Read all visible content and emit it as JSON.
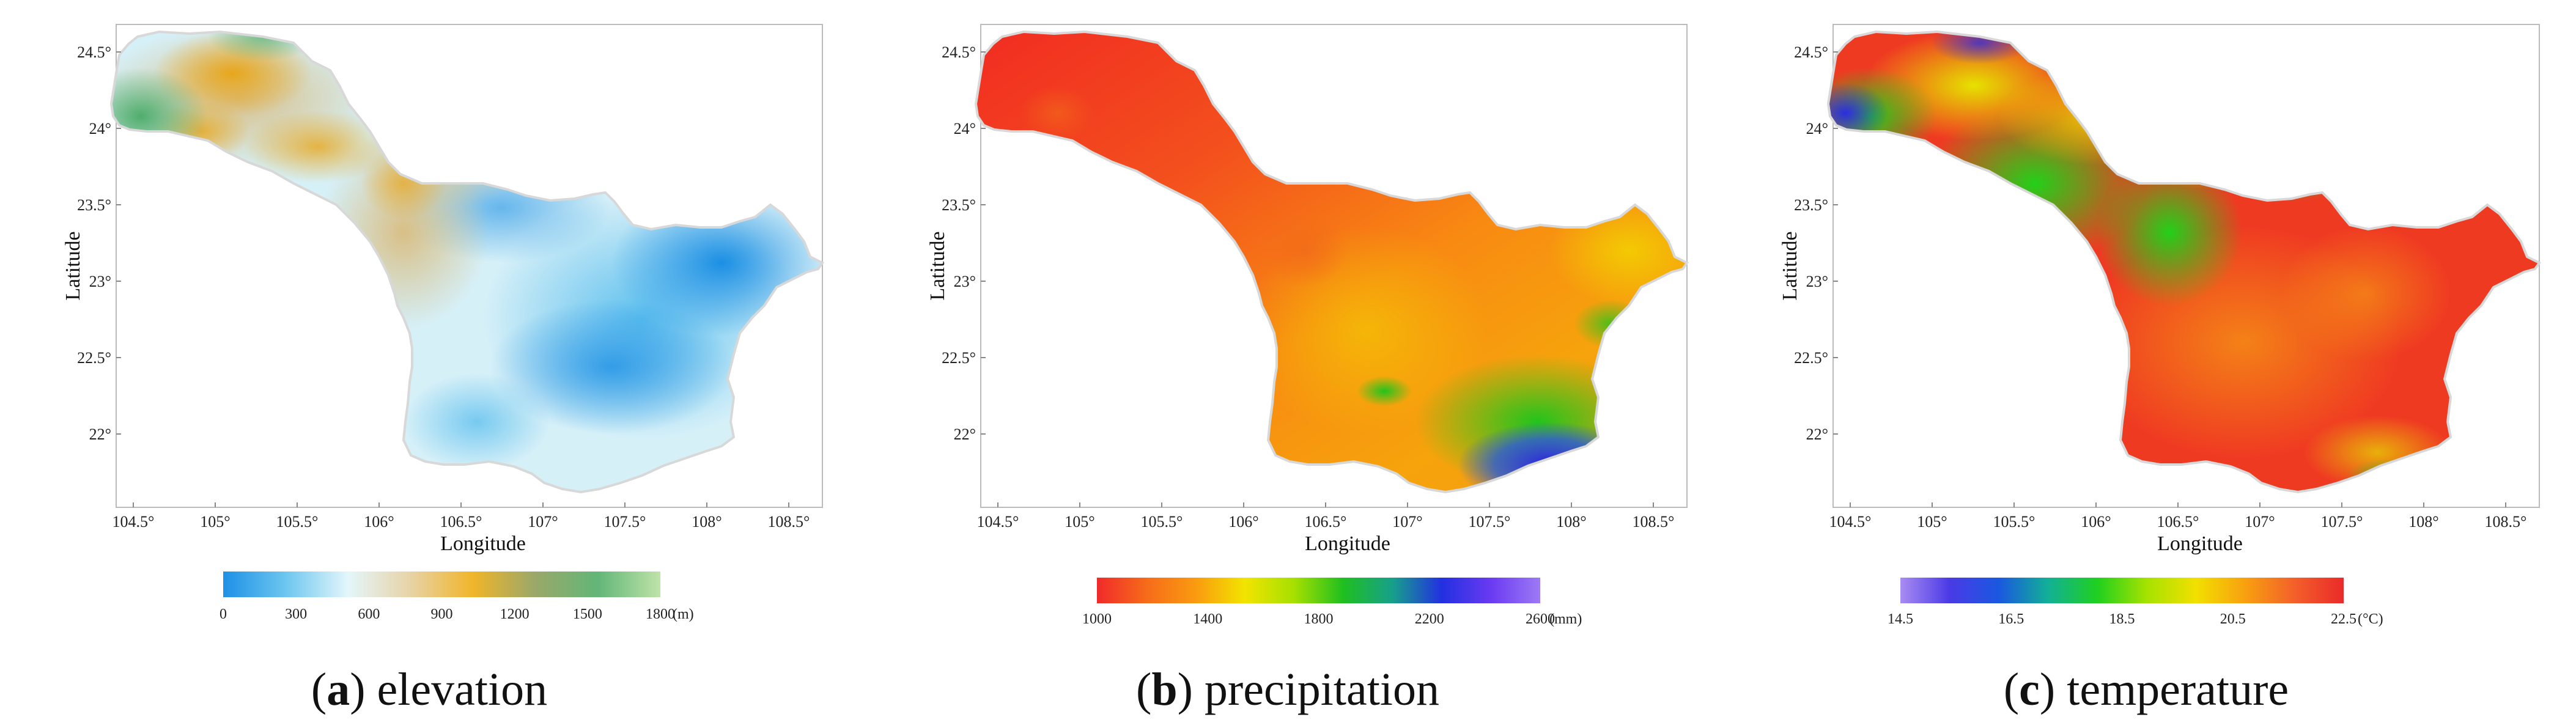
{
  "xlabel": "Longitude",
  "ylabel": "Latitude",
  "xticks": [
    "104.5°",
    "105°",
    "105.5°",
    "106°",
    "106.5°",
    "107°",
    "107.5°",
    "108°",
    "108.5°"
  ],
  "yticks": [
    "24.5°",
    "24°",
    "23.5°",
    "23°",
    "22.5°",
    "22°"
  ],
  "panels": [
    {
      "letter": "a",
      "name": "elevation",
      "colorbar": {
        "ticks": [
          "0",
          "300",
          "600",
          "900",
          "1200",
          "1500",
          "1800"
        ],
        "unit": "(m)",
        "colors": [
          "#1e90e6",
          "#6cc6ef",
          "#e4f6fb",
          "#e8d3a6",
          "#f0b52a",
          "#9aa86a",
          "#62b678",
          "#bfe3a8"
        ]
      }
    },
    {
      "letter": "b",
      "name": "precipitation",
      "colorbar": {
        "ticks": [
          "1000",
          "1400",
          "1800",
          "2200",
          "2600"
        ],
        "unit": "(mm)",
        "colors": [
          "#f02a2a",
          "#f66b1a",
          "#fa9a10",
          "#f2e400",
          "#a6e000",
          "#1fbf1f",
          "#17a08a",
          "#2230e0",
          "#6a3af2",
          "#9d7af5"
        ]
      }
    },
    {
      "letter": "c",
      "name": "temperature",
      "colorbar": {
        "ticks": [
          "14.5",
          "16.5",
          "18.5",
          "20.5",
          "22.5"
        ],
        "unit": "(°C)",
        "colors": [
          "#a98cf2",
          "#4a3ae6",
          "#1a58e0",
          "#12b096",
          "#1fd01f",
          "#a6e200",
          "#f2e000",
          "#f8a010",
          "#f3602a",
          "#ea2a2a"
        ]
      }
    }
  ]
}
